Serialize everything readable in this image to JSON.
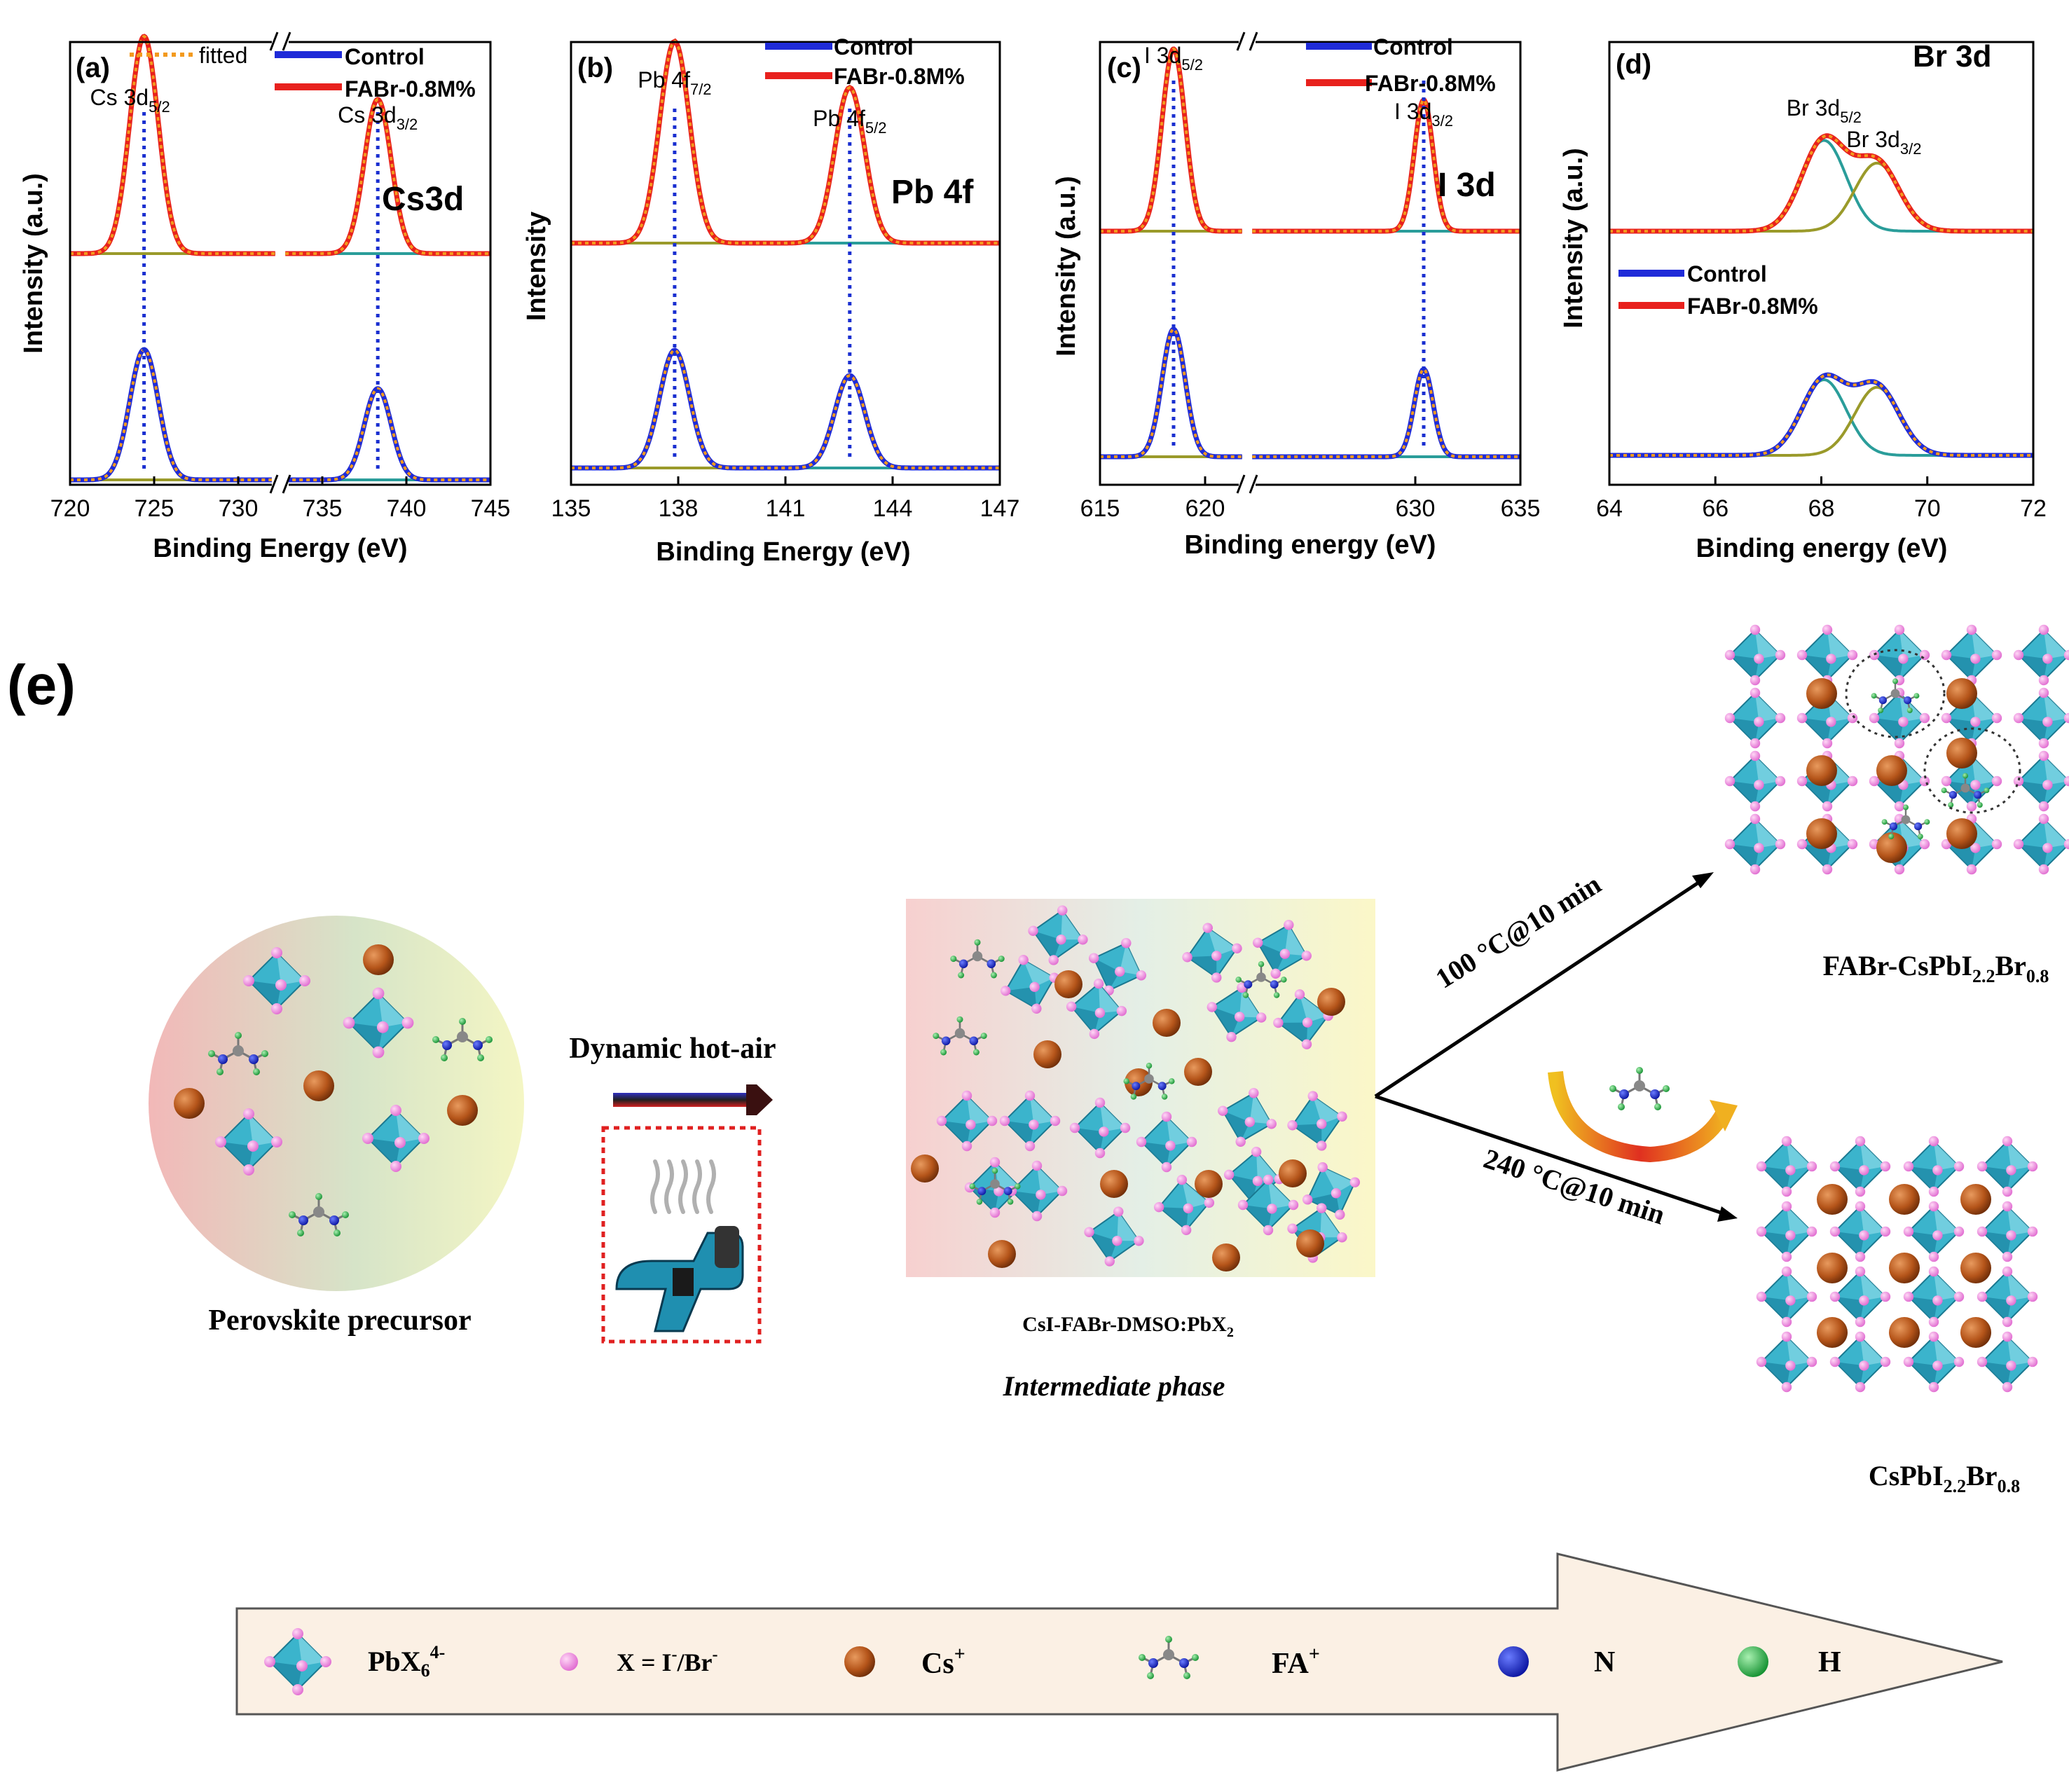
{
  "colors": {
    "control": "#1f2bd8",
    "fabr": "#e8211d",
    "fitted": "#f39a1e",
    "dotline": "#1a2fd0",
    "base_teal": "#2a9d9a",
    "base_olive": "#9a9a2a",
    "octa": "#3bb4cc",
    "halide": "#f08ae0",
    "cs": "#b5551a",
    "n": "#2030c8",
    "h": "#30b040",
    "c": "#888888"
  },
  "chart_data": [
    {
      "type": "line",
      "panel": "(a)",
      "title": "Cs3d",
      "xlabel": "Binding Energy (eV)",
      "ylabel": "Intensity (a.u.)",
      "xlim": [
        720,
        745
      ],
      "xticks": [
        "720",
        "725",
        "730",
        "735",
        "740",
        "745"
      ],
      "xtick_values": [
        720,
        725,
        730,
        735,
        740,
        745
      ],
      "axis_break_at": 732.5,
      "legend": [
        "fitted",
        "Control",
        "FABr-0.8M%"
      ],
      "peaks": [
        {
          "label_main": "Cs 3d",
          "label_sub": "5/2",
          "center": 724.4,
          "width": 0.85
        },
        {
          "label_main": "Cs 3d",
          "label_sub": "3/2",
          "center": 738.3,
          "width": 0.8
        }
      ],
      "series": [
        {
          "name": "FABr-0.8M%",
          "offset": 1.0,
          "heights": [
            1.0,
            0.71
          ]
        },
        {
          "name": "Control",
          "offset": 0.0,
          "heights": [
            0.6,
            0.42
          ]
        }
      ]
    },
    {
      "type": "line",
      "panel": "(b)",
      "title": "Pb 4f",
      "xlabel": "Binding Energy (eV)",
      "ylabel": "Intensity",
      "xlim": [
        135,
        147
      ],
      "xticks": [
        "135",
        "138",
        "141",
        "144",
        "147"
      ],
      "xtick_values": [
        135,
        138,
        141,
        144,
        147
      ],
      "legend": [
        "Control",
        "FABr-0.8M%"
      ],
      "peaks": [
        {
          "label_main": "Pb 4f",
          "label_sub": "7/2",
          "center": 137.9,
          "width": 0.42
        },
        {
          "label_main": "Pb 4f",
          "label_sub": "5/2",
          "center": 142.8,
          "width": 0.42
        }
      ],
      "series": [
        {
          "name": "FABr-0.8M%",
          "offset": 1.0,
          "heights": [
            0.96,
            0.74
          ]
        },
        {
          "name": "Control",
          "offset": 0.0,
          "heights": [
            0.56,
            0.44
          ]
        }
      ]
    },
    {
      "type": "line",
      "panel": "(c)",
      "title": "I 3d",
      "xlabel": "Binding energy (eV)",
      "ylabel": "Intensity (a.u.)",
      "xlim": [
        615,
        635
      ],
      "xticks": [
        "615",
        "620",
        "630",
        "635"
      ],
      "xtick_values": [
        615,
        620,
        630,
        635
      ],
      "axis_break_at": 622,
      "legend": [
        "Control",
        "FABr-0.8M%"
      ],
      "peaks": [
        {
          "label_main": "I 3d",
          "label_sub": "5/2",
          "center": 618.5,
          "width": 0.55
        },
        {
          "label_main": "I 3d",
          "label_sub": "3/2",
          "center": 630.4,
          "width": 0.45
        }
      ],
      "series": [
        {
          "name": "FABr-0.8M%",
          "offset": 1.0,
          "heights": [
            1.0,
            0.72
          ]
        },
        {
          "name": "Control",
          "offset": 0.0,
          "heights": [
            0.7,
            0.48
          ]
        }
      ]
    },
    {
      "type": "line",
      "panel": "(d)",
      "title": "Br 3d",
      "xlabel": "Binding energy (eV)",
      "ylabel": "Intensity (a.u.)",
      "xlim": [
        64,
        72
      ],
      "xticks": [
        "64",
        "66",
        "68",
        "70",
        "72"
      ],
      "xtick_values": [
        64,
        66,
        68,
        70,
        72
      ],
      "legend": [
        "Control",
        "FABr-0.8M%"
      ],
      "peaks": [
        {
          "label_main": "Br 3d",
          "label_sub": "5/2",
          "center": 68.05,
          "width": 0.42
        },
        {
          "label_main": "Br 3d",
          "label_sub": "3/2",
          "center": 69.05,
          "width": 0.42
        }
      ],
      "series": [
        {
          "name": "FABr-0.8M%",
          "offset": 1.0,
          "heights": [
            0.48,
            0.36
          ]
        },
        {
          "name": "Control",
          "offset": 0.0,
          "heights": [
            0.4,
            0.36
          ]
        }
      ]
    }
  ],
  "scheme": {
    "panel_label": "(e)",
    "precursor_label": "Perovskite precursor",
    "hot_air_label": "Dynamic hot-air",
    "intermediate_formula_main": "CsI-FABr-DMSO:PbX",
    "intermediate_formula_sub": "2",
    "intermediate_label": "Intermediate phase",
    "route_100": "100 °C@10 min",
    "route_240": "240 °C@10 min",
    "product_fabr": {
      "prefix": "FABr-CsPbI",
      "sub1": "2.2",
      "mid": "Br",
      "sub2": "0.8"
    },
    "product_cs": {
      "prefix": "CsPbI",
      "sub1": "2.2",
      "mid": "Br",
      "sub2": "0.8"
    }
  },
  "legend_bar": {
    "pbx6": {
      "main": "PbX",
      "sub": "6",
      "sup": "4-"
    },
    "halide": {
      "main": "X = I",
      "sup1": "-",
      "mid": "/Br",
      "sup2": "-"
    },
    "cs": {
      "main": "Cs",
      "sup": "+"
    },
    "fa": {
      "main": "FA",
      "sup": "+"
    },
    "n": "N",
    "h": "H"
  }
}
